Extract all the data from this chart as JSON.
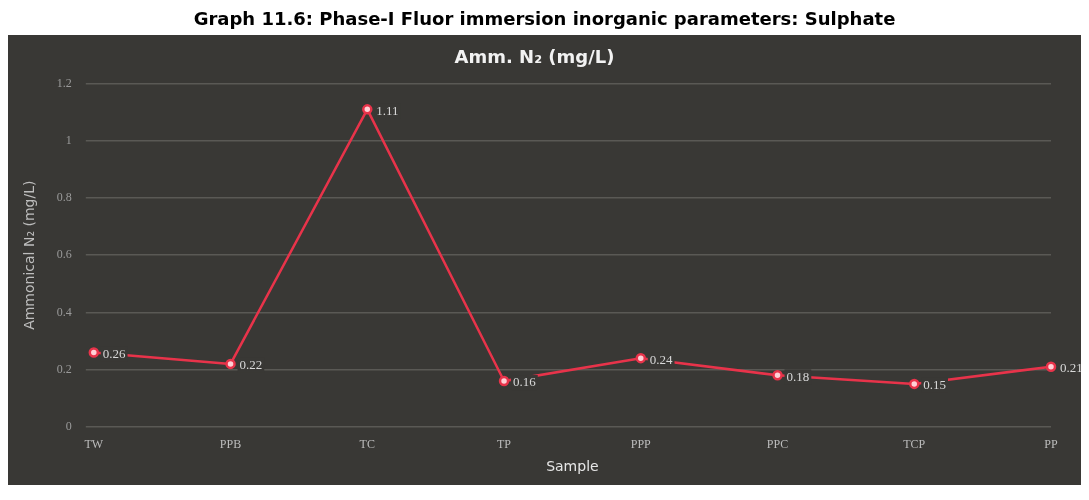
{
  "chart_data": {
    "type": "line",
    "title": "Graph 11.6: Phase-I Fluor immersion inorganic parameters: Sulphate",
    "subtitle": "Amm. N₂ (mg/L)",
    "xlabel": "Sample",
    "ylabel": "Ammonical N₂ (mg/L)",
    "categories": [
      "TW",
      "PPB",
      "TC",
      "TP",
      "PPP",
      "PPC",
      "TCP",
      "PP"
    ],
    "series": [
      {
        "color": "#e8334a",
        "values": [
          0.26,
          0.22,
          1.11,
          0.16,
          0.24,
          0.18,
          0.15,
          0.21
        ]
      }
    ],
    "ylim": [
      0,
      1.2
    ],
    "yticks": [
      0,
      {
        "value": 0.2,
        "label": "0.2"
      },
      {
        "value": 0.4,
        "label": "0.4"
      },
      {
        "value": 0.6,
        "label": "0.6"
      },
      {
        "value": 0.8,
        "label": "0.8"
      },
      1,
      {
        "value": 1.2,
        "label": "1.2"
      }
    ],
    "grid": "y",
    "marker": "circle",
    "line_style": "solid",
    "data_labels": true,
    "legend": false
  }
}
